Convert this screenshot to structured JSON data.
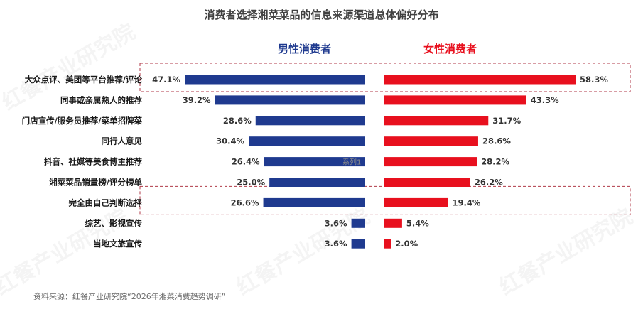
{
  "chart_data": {
    "type": "bar",
    "title": "消费者选择湘菜菜品的信息来源渠道总体偏好分布",
    "categories": [
      "大众点评、美团等平台推荐/评论",
      "同事或亲属熟人的推荐",
      "门店宣传/服务员推荐/菜单招牌菜",
      "同行人意见",
      "抖音、社媒等美食博主推荐",
      "湘菜菜品销量榜/评分榜单",
      "完全由自己判断选择",
      "综艺、影视宣传",
      "当地文旅宣传"
    ],
    "series": [
      {
        "name": "男性消费者",
        "color": "#1f3a8f",
        "values": [
          47.1,
          39.2,
          28.6,
          30.4,
          26.4,
          25.0,
          26.6,
          3.6,
          3.6
        ],
        "labels": [
          "47.1%",
          "39.2%",
          "28.6%",
          "30.4%",
          "26.4%",
          "25.0%",
          "26.6%",
          "3.6%",
          "3.6%"
        ]
      },
      {
        "name": "女性消费者",
        "color": "#e8101e",
        "values": [
          58.3,
          43.3,
          31.7,
          28.6,
          28.2,
          26.2,
          19.4,
          5.4,
          2.0
        ],
        "labels": [
          "58.3%",
          "43.3%",
          "31.7%",
          "28.6%",
          "28.2%",
          "26.2%",
          "19.4%",
          "5.4%",
          "2.0%"
        ]
      }
    ],
    "highlighted_categories": [
      0,
      6
    ],
    "legend": "top-center",
    "grid": false,
    "ghost_label": "系列1"
  },
  "source": "资料来源：红餐产业研究院“2026年湘菜消费趋势调研”",
  "watermark": "红餐产业研究院"
}
